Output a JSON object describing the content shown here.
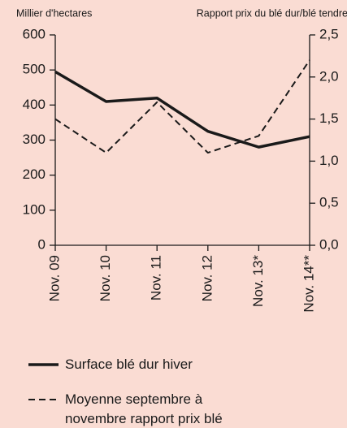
{
  "chart_data": {
    "type": "line",
    "y_label": "Millier d'hectares",
    "y2_label": "Rapport prix du blé dur/blé tendre",
    "categories": [
      "Nov. 09",
      "Nov. 10",
      "Nov. 11",
      "Nov. 12",
      "Nov. 13*",
      "Nov. 14**"
    ],
    "series": [
      {
        "name": "Surface blé dur hiver",
        "color": "#1a1a1a",
        "dash": false,
        "values": [
          495,
          410,
          420,
          325,
          280,
          310
        ]
      },
      {
        "name": "Moyenne septembre à novembre rapport prix blé dur/blé tendre",
        "color": "#1a1a1a",
        "dash": true,
        "axis": "y2",
        "values": [
          1.5,
          1.1,
          1.7,
          1.1,
          1.3,
          2.2
        ]
      }
    ],
    "ylim": [
      0,
      600
    ],
    "yticks": [
      0,
      100,
      200,
      300,
      400,
      500,
      600
    ],
    "y2lim": [
      0,
      2.5
    ],
    "y2ticks": [
      {
        "value": 0,
        "label": "0,0"
      },
      {
        "value": 0.5,
        "label": "0,5"
      },
      {
        "value": 1,
        "label": "1,0"
      },
      {
        "value": 1.5,
        "label": "1,5"
      },
      {
        "value": 2,
        "label": "2,0"
      },
      {
        "value": 2.5,
        "label": "2,5"
      }
    ],
    "grid": false
  }
}
